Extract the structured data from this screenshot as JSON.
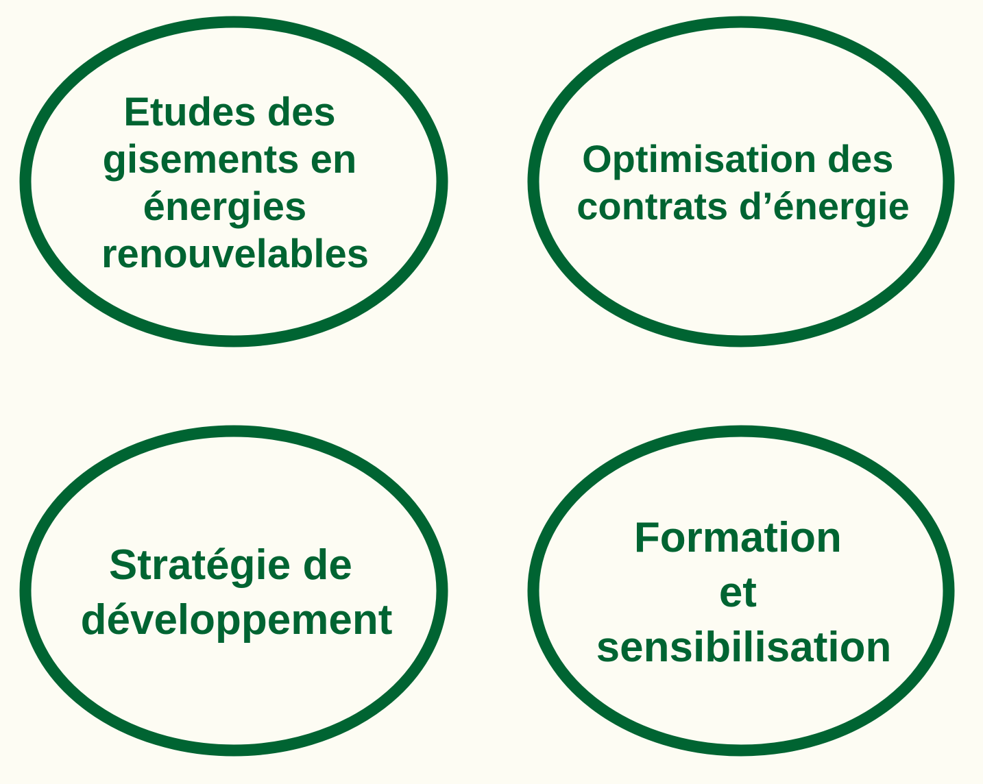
{
  "colors": {
    "background": "#fdfcf3",
    "accent": "#006432"
  },
  "nodes": [
    {
      "id": "etudes-gisements",
      "lines": [
        "Etudes des",
        "gisements en",
        "énergies",
        "renouvelables"
      ]
    },
    {
      "id": "optimisation-contrats",
      "lines": [
        "Optimisation des",
        "contrats d’énergie"
      ]
    },
    {
      "id": "strategie-developpement",
      "lines": [
        "Stratégie de",
        "développement"
      ]
    },
    {
      "id": "formation-sensibilisation",
      "lines": [
        "Formation",
        "et",
        "sensibilisation"
      ]
    }
  ]
}
